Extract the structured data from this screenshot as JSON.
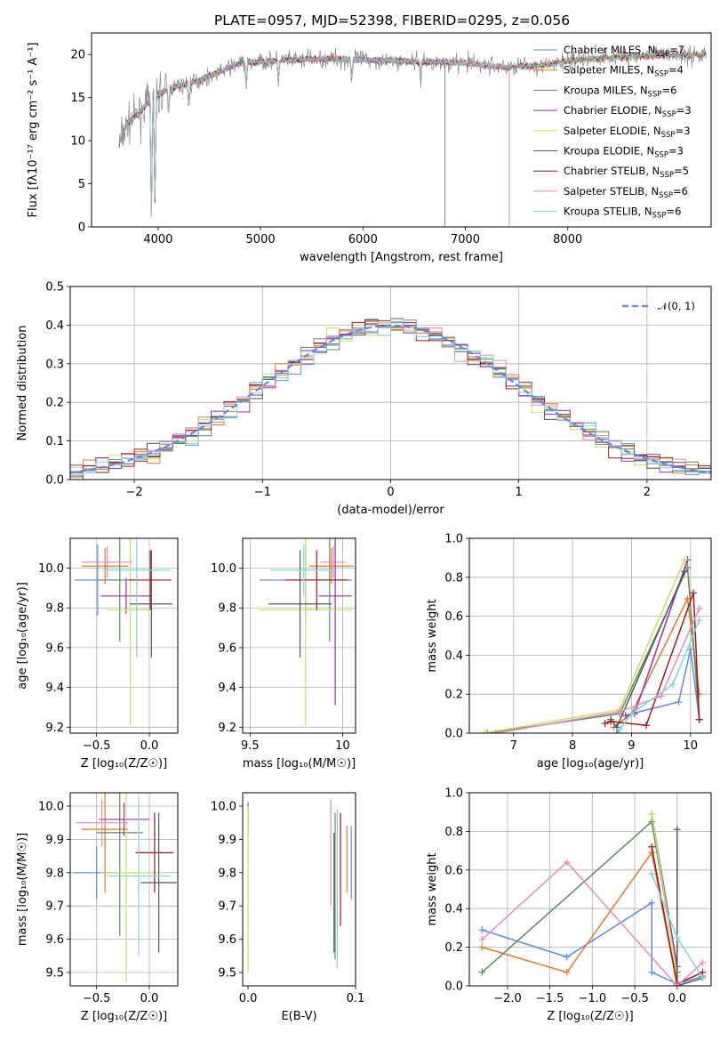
{
  "title": "PLATE=0957, MJD=52398, FIBERID=0295, z=0.056",
  "colors": [
    "#5e8be0",
    "#e07b27",
    "#5e8a5e",
    "#9b2fb0",
    "#c9e05e",
    "#555555",
    "#a01818",
    "#e88ac0",
    "#7fd6d6"
  ],
  "gray": "#888888",
  "chart_data": [
    {
      "id": "spectrum",
      "type": "line",
      "xlabel": "wavelength [Angstrom, rest frame]",
      "ylabel": "Flux [f$_\\lambda$10$^{-17}$ erg cm$^{-2}$ s$^{-1}$ A$^{-1}$]",
      "ylabel_text": "Flux [fλ10⁻¹⁷ erg cm⁻² s⁻¹ A⁻¹]",
      "xlim": [
        3350,
        9400
      ],
      "ylim": [
        0,
        22.5
      ],
      "xticks": [
        4000,
        5000,
        6000,
        7000,
        8000
      ],
      "yticks": [
        0,
        5,
        10,
        15,
        20
      ],
      "legend_position": "top-right",
      "series": [
        {
          "name": "Chabrier MILES, N_SSP=7",
          "label": "Chabrier MILES, N",
          "sub": "SSP",
          "tail": "=7"
        },
        {
          "name": "Salpeter MILES, N_SSP=4",
          "label": "Salpeter MILES, N",
          "sub": "SSP",
          "tail": "=4"
        },
        {
          "name": "Kroupa MILES, N_SSP=6",
          "label": "Kroupa MILES, N",
          "sub": "SSP",
          "tail": "=6"
        },
        {
          "name": "Chabrier ELODIE, N_SSP=3",
          "label": "Chabrier ELODIE, N",
          "sub": "SSP",
          "tail": "=3"
        },
        {
          "name": "Salpeter ELODIE, N_SSP=3",
          "label": "Salpeter ELODIE, N",
          "sub": "SSP",
          "tail": "=3"
        },
        {
          "name": "Kroupa ELODIE, N_SSP=3",
          "label": "Kroupa ELODIE, N",
          "sub": "SSP",
          "tail": "=3"
        },
        {
          "name": "Chabrier STELIB, N_SSP=5",
          "label": "Chabrier STELIB, N",
          "sub": "SSP",
          "tail": "=5"
        },
        {
          "name": "Salpeter STELIB, N_SSP=6",
          "label": "Salpeter STELIB, N",
          "sub": "SSP",
          "tail": "=6"
        },
        {
          "name": "Kroupa STELIB, N_SSP=6",
          "label": "Kroupa STELIB, N",
          "sub": "SSP",
          "tail": "=6"
        }
      ],
      "continuum_points": [
        [
          3600,
          9
        ],
        [
          3700,
          12
        ],
        [
          3800,
          13
        ],
        [
          3950,
          15
        ],
        [
          4100,
          16
        ],
        [
          4400,
          17
        ],
        [
          4800,
          19
        ],
        [
          5200,
          19.3
        ],
        [
          5600,
          19.5
        ],
        [
          6000,
          19.4
        ],
        [
          6500,
          19.2
        ],
        [
          7000,
          19
        ],
        [
          7400,
          18.5
        ],
        [
          7500,
          18.6
        ],
        [
          7800,
          18.8
        ],
        [
          8000,
          19.2
        ],
        [
          8200,
          19.5
        ],
        [
          8600,
          19.8
        ],
        [
          9300,
          20
        ]
      ]
    },
    {
      "id": "residuals",
      "type": "line",
      "xlabel": "(data-model)/error",
      "ylabel": "Normed distribution",
      "xlim": [
        -2.5,
        2.5
      ],
      "ylim": [
        0,
        0.5
      ],
      "xticks": [
        -2,
        -1,
        0,
        1,
        2
      ],
      "xtick_labels": [
        "−2",
        "−1",
        "0",
        "1",
        "2"
      ],
      "yticks": [
        0,
        0.1,
        0.2,
        0.3,
        0.4,
        0.5
      ],
      "grid": true,
      "legend_position": "top-right",
      "reference": {
        "name": "𝒩(0, 1)",
        "mu": 0,
        "sigma": 1
      }
    },
    {
      "id": "age-vs-Z",
      "type": "scatter",
      "xlabel": "Z [log₁₀(Z/Z☉)]",
      "ylabel": "age  [log₁₀(age/yr)]",
      "xlim": [
        -0.75,
        0.27
      ],
      "ylim": [
        9.17,
        10.15
      ],
      "xticks": [
        -0.5,
        0.0
      ],
      "xtick_labels": [
        "−0.5",
        "0.0"
      ],
      "yticks": [
        9.2,
        9.4,
        9.6,
        9.8,
        10.0
      ],
      "grid": true,
      "points": [
        {
          "x": -0.49,
          "y": 9.94,
          "xerr": 0.22,
          "yerr": 0.18
        },
        {
          "x": -0.42,
          "y": 10.01,
          "xerr": 0.22,
          "yerr": 0.09
        },
        {
          "x": -0.28,
          "y": 9.94,
          "xerr": 0.2,
          "yerr": 0.31
        },
        {
          "x": -0.22,
          "y": 9.86,
          "xerr": 0.24,
          "yerr": 0.09
        },
        {
          "x": -0.18,
          "y": 9.79,
          "xerr": 0.22,
          "yerr": 0.58
        },
        {
          "x": 0.02,
          "y": 9.82,
          "xerr": 0.2,
          "yerr": 0.27
        },
        {
          "x": 0.01,
          "y": 9.94,
          "xerr": 0.2,
          "yerr": 0.15
        },
        {
          "x": -0.4,
          "y": 10.03,
          "xerr": 0.24,
          "yerr": 0.08
        },
        {
          "x": -0.12,
          "y": 9.99,
          "xerr": 0.32,
          "yerr": 0.44
        }
      ]
    },
    {
      "id": "age-vs-mass",
      "type": "scatter",
      "xlabel": "mass [log₁₀(M/M☉)]",
      "xlim": [
        9.46,
        10.07
      ],
      "ylim": [
        9.17,
        10.15
      ],
      "xticks": [
        9.5,
        10.0
      ],
      "yticks": [
        9.2,
        9.4,
        9.6,
        9.8,
        10.0
      ],
      "grid": true,
      "points": [
        {
          "x": 9.8,
          "y": 9.94,
          "xerr": 0.25,
          "yerr": 0.18
        },
        {
          "x": 9.94,
          "y": 10.01,
          "xerr": 0.12,
          "yerr": 0.09
        },
        {
          "x": 9.93,
          "y": 9.94,
          "xerr": 0.1,
          "yerr": 0.31
        },
        {
          "x": 9.96,
          "y": 9.86,
          "xerr": 0.09,
          "yerr": 0.55
        },
        {
          "x": 9.8,
          "y": 9.79,
          "xerr": 0.25,
          "yerr": 0.58
        },
        {
          "x": 9.77,
          "y": 9.82,
          "xerr": 0.17,
          "yerr": 0.27
        },
        {
          "x": 9.86,
          "y": 9.94,
          "xerr": 0.17,
          "yerr": 0.15
        },
        {
          "x": 9.95,
          "y": 10.03,
          "xerr": 0.07,
          "yerr": 0.08
        },
        {
          "x": 9.79,
          "y": 9.99,
          "xerr": 0.18,
          "yerr": 0.13
        }
      ]
    },
    {
      "id": "weights-vs-age",
      "type": "line",
      "xlabel": "age  [log₁₀(age/yr)]",
      "ylabel": "mass weight",
      "xlim": [
        6.25,
        10.35
      ],
      "ylim": [
        0,
        1
      ],
      "xticks": [
        7,
        8,
        9,
        10
      ],
      "yticks": [
        0,
        0.2,
        0.4,
        0.6,
        0.8,
        1.0
      ],
      "grid": true,
      "series": [
        {
          "points": [
            [
              8.75,
              0.0
            ],
            [
              9.0,
              0.1
            ],
            [
              9.8,
              0.16
            ],
            [
              10.0,
              0.43
            ],
            [
              10.15,
              0.07
            ]
          ]
        },
        {
          "points": [
            [
              8.7,
              0.03
            ],
            [
              9.0,
              0.1
            ],
            [
              9.95,
              0.69
            ],
            [
              10.15,
              0.2
            ]
          ]
        },
        {
          "points": [
            [
              6.55,
              0.0
            ],
            [
              8.8,
              0.1
            ],
            [
              9.95,
              0.85
            ],
            [
              10.15,
              0.07
            ]
          ]
        },
        {
          "points": [
            [
              8.9,
              0.09
            ],
            [
              9.05,
              0.1
            ],
            [
              9.95,
              0.89
            ]
          ]
        },
        {
          "points": [
            [
              6.5,
              0.0
            ],
            [
              8.8,
              0.12
            ],
            [
              9.9,
              0.89
            ]
          ]
        },
        {
          "points": [
            [
              8.65,
              0.07
            ],
            [
              8.75,
              0.03
            ],
            [
              9.9,
              0.83
            ]
          ]
        },
        {
          "points": [
            [
              8.55,
              0.05
            ],
            [
              8.65,
              0.06
            ],
            [
              9.25,
              0.04
            ],
            [
              10.05,
              0.72
            ],
            [
              10.15,
              0.07
            ]
          ]
        },
        {
          "points": [
            [
              6.7,
              0.0
            ],
            [
              8.8,
              0.11
            ],
            [
              9.5,
              0.19
            ],
            [
              10.15,
              0.64
            ]
          ]
        },
        {
          "points": [
            [
              8.8,
              0.02
            ],
            [
              9.0,
              0.1
            ],
            [
              9.7,
              0.25
            ],
            [
              10.15,
              0.58
            ]
          ]
        }
      ]
    },
    {
      "id": "mass-vs-Z",
      "type": "scatter",
      "xlabel": "Z [log₁₀(Z/Z☉)]",
      "ylabel": "mass [log₁₀(M/M☉)]",
      "xlim": [
        -0.75,
        0.27
      ],
      "ylim": [
        9.46,
        10.04
      ],
      "xticks": [
        -0.5,
        0.0
      ],
      "xtick_labels": [
        "−0.5",
        "0.0"
      ],
      "yticks": [
        9.5,
        9.6,
        9.7,
        9.8,
        9.9,
        10.0
      ],
      "grid": true,
      "points": [
        {
          "x": -0.5,
          "y": 9.8,
          "xerr": 0.22,
          "yerr": 0.08
        },
        {
          "x": -0.42,
          "y": 9.93,
          "xerr": 0.22,
          "yerr": 0.19
        },
        {
          "x": -0.28,
          "y": 9.92,
          "xerr": 0.22,
          "yerr": 0.31
        },
        {
          "x": -0.24,
          "y": 9.96,
          "xerr": 0.24,
          "yerr": 0.05
        },
        {
          "x": -0.22,
          "y": 9.8,
          "xerr": 0.24,
          "yerr": 0.33
        },
        {
          "x": 0.09,
          "y": 9.77,
          "xerr": 0.17,
          "yerr": 0.21
        },
        {
          "x": 0.05,
          "y": 9.86,
          "xerr": 0.18,
          "yerr": 0.12
        },
        {
          "x": -0.45,
          "y": 9.95,
          "xerr": 0.25,
          "yerr": 0.07
        },
        {
          "x": -0.1,
          "y": 9.79,
          "xerr": 0.3,
          "yerr": 0.24
        }
      ]
    },
    {
      "id": "mass-vs-EBV",
      "type": "scatter",
      "xlabel": "E(B-V)",
      "xlim": [
        -0.005,
        0.1
      ],
      "ylim": [
        9.46,
        10.04
      ],
      "xticks": [
        0.0,
        0.1
      ],
      "xtick_labels": [
        "0.0",
        "0.1"
      ],
      "yticks": [
        9.5,
        9.6,
        9.7,
        9.8,
        9.9,
        10.0
      ],
      "grid": false,
      "points": [
        {
          "x": 0.0,
          "y": 9.96,
          "yerr": 0.05,
          "c": 3
        },
        {
          "x": 0.0,
          "y": 9.75,
          "yerr": 0.25,
          "c": 4
        },
        {
          "x": 0.08,
          "y": 9.74,
          "yerr": 0.18,
          "c": 5
        },
        {
          "x": 0.081,
          "y": 9.76,
          "yerr": 0.22,
          "c": 2
        },
        {
          "x": 0.083,
          "y": 9.75,
          "yerr": 0.24,
          "c": 8
        },
        {
          "x": 0.086,
          "y": 9.81,
          "yerr": 0.17,
          "c": 6
        },
        {
          "x": 0.077,
          "y": 9.86,
          "yerr": 0.16,
          "c": 7
        },
        {
          "x": 0.092,
          "y": 9.84,
          "yerr": 0.1,
          "c": 1
        },
        {
          "x": 0.096,
          "y": 9.83,
          "yerr": 0.11,
          "c": 0
        }
      ]
    },
    {
      "id": "weights-vs-Z",
      "type": "line",
      "xlabel": "Z [log₁₀(Z/Z☉)]",
      "ylabel": "mass weight",
      "xlim": [
        -2.45,
        0.4
      ],
      "ylim": [
        0,
        1
      ],
      "xticks": [
        -2.0,
        -1.5,
        -1.0,
        -0.5,
        0.0
      ],
      "xtick_labels": [
        "−2.0",
        "−1.5",
        "−1.0",
        "−0.5",
        "0.0"
      ],
      "yticks": [
        0,
        0.2,
        0.4,
        0.6,
        0.8,
        1.0
      ],
      "grid": true,
      "series": [
        {
          "points": [
            [
              -2.3,
              0.29
            ],
            [
              -1.3,
              0.15
            ],
            [
              -0.3,
              0.43
            ],
            [
              -0.3,
              0.07
            ],
            [
              0.0,
              0.01
            ],
            [
              0.3,
              0.05
            ]
          ]
        },
        {
          "points": [
            [
              -2.3,
              0.2
            ],
            [
              -1.3,
              0.07
            ],
            [
              -0.3,
              0.69
            ],
            [
              0.0,
              0.0
            ]
          ]
        },
        {
          "points": [
            [
              -2.3,
              0.07
            ],
            [
              -0.3,
              0.85
            ],
            [
              0.0,
              0.07
            ]
          ]
        },
        {
          "points": [
            [
              -0.3,
              0.89
            ],
            [
              0.0,
              0.1
            ]
          ]
        },
        {
          "points": [
            [
              -0.3,
              0.89
            ],
            [
              0.0,
              0.05
            ]
          ]
        },
        {
          "points": [
            [
              0.0,
              0.81
            ],
            [
              0.0,
              0.0
            ],
            [
              0.3,
              0.04
            ]
          ]
        },
        {
          "points": [
            [
              -0.3,
              0.72
            ],
            [
              0.0,
              0.01
            ],
            [
              0.3,
              0.07
            ]
          ]
        },
        {
          "points": [
            [
              -2.3,
              0.24
            ],
            [
              -1.3,
              0.64
            ],
            [
              0.0,
              0.0
            ],
            [
              0.3,
              0.12
            ]
          ]
        },
        {
          "points": [
            [
              -0.3,
              0.58
            ],
            [
              0.0,
              0.25
            ],
            [
              0.3,
              0.04
            ]
          ]
        }
      ]
    }
  ]
}
